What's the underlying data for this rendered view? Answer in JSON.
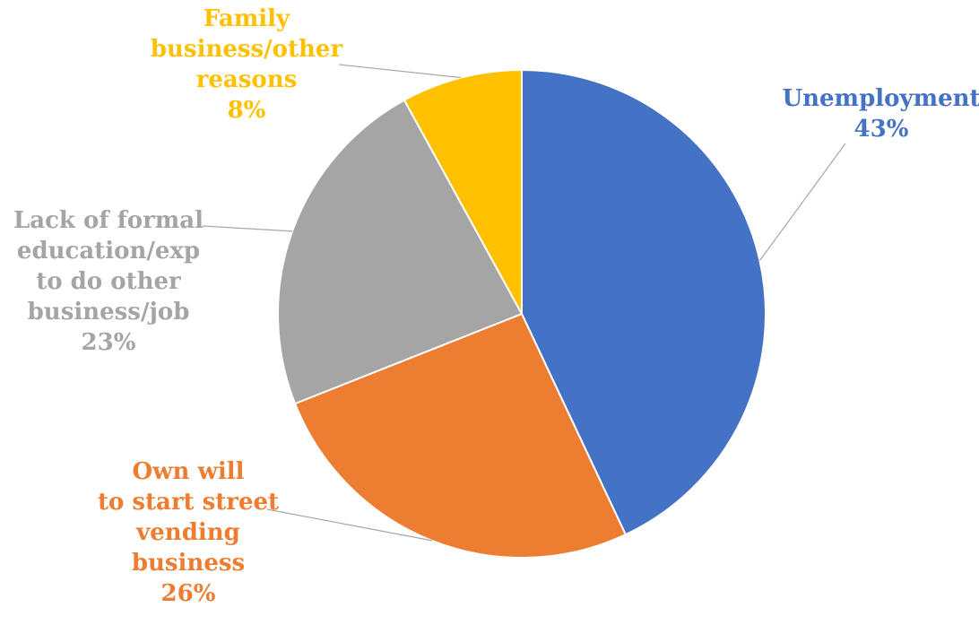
{
  "chart_data": {
    "type": "pie",
    "title": "",
    "slices": [
      {
        "label_lines": [
          "Unemployment"
        ],
        "percent_text": "43%",
        "value": 43,
        "color": "#4472C4"
      },
      {
        "label_lines": [
          "Own will",
          "to start street",
          "vending",
          "business"
        ],
        "percent_text": "26%",
        "value": 26,
        "color": "#ED7D31"
      },
      {
        "label_lines": [
          "Lack of formal",
          "education/exp",
          "to do other",
          "business/job"
        ],
        "percent_text": "23%",
        "value": 23,
        "color": "#A5A5A5"
      },
      {
        "label_lines": [
          "Family",
          "business/other",
          "reasons"
        ],
        "percent_text": "8%",
        "value": 8,
        "color": "#FFC000"
      }
    ],
    "start_angle": "12 o'clock",
    "direction": "clockwise",
    "legend": "none",
    "leader_line_color": "#A6A6A6"
  }
}
